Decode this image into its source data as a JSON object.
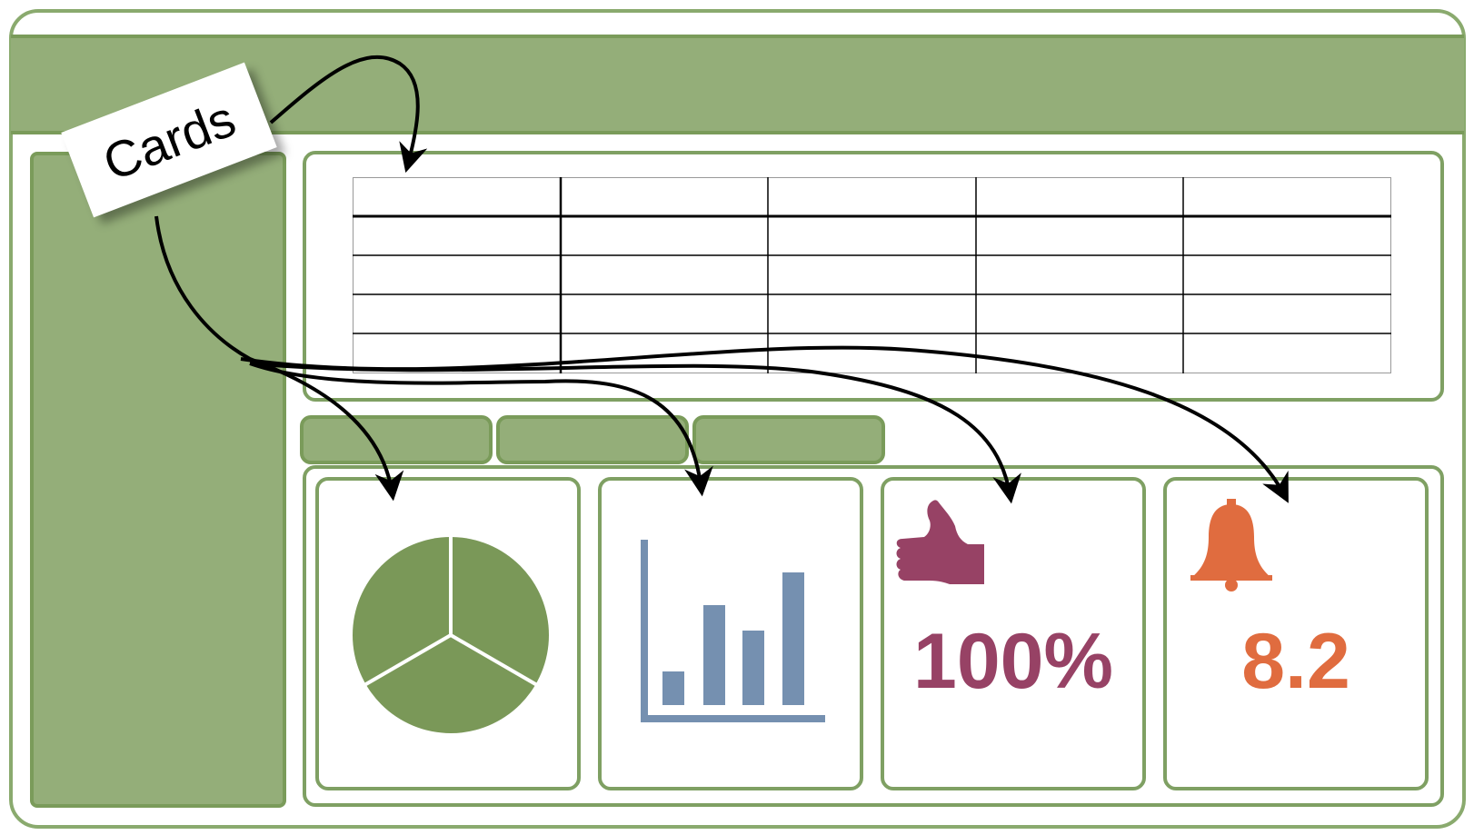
{
  "annotation": {
    "label": "Cards"
  },
  "cards": [
    {
      "kind": "pie",
      "icon": "pie-chart-icon",
      "color": "#7a9858"
    },
    {
      "kind": "bar",
      "icon": "bar-chart-icon",
      "color": "#7590b0"
    },
    {
      "kind": "kpi",
      "icon": "thumbs-up-icon",
      "value": "100%",
      "color": "#974265"
    },
    {
      "kind": "kpi",
      "icon": "bell-icon",
      "value": "8.2",
      "color": "#e06c3f"
    }
  ],
  "colors": {
    "panel_fill": "#94ae79",
    "panel_border": "#7a9b5a",
    "arrow": "#000000"
  }
}
